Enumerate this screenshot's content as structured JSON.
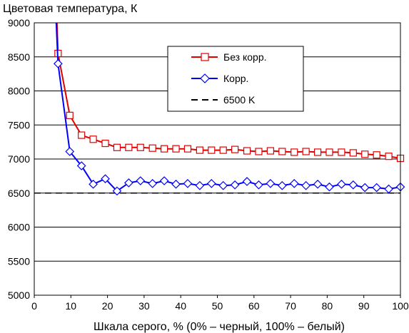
{
  "chart_data": {
    "type": "line",
    "title": "Цветовая температура, К",
    "xlabel": "Шкала серого, % (0% – черный, 100% – белый)",
    "ylabel": "",
    "xlim": [
      0,
      100
    ],
    "ylim": [
      5000,
      9000
    ],
    "x_ticks": [
      0,
      10,
      20,
      30,
      40,
      50,
      60,
      70,
      80,
      90,
      100
    ],
    "y_ticks": [
      5000,
      5500,
      6000,
      6500,
      7000,
      7500,
      8000,
      8500,
      9000
    ],
    "grid": "horizontal",
    "legend_position": "top-right",
    "reference_line": {
      "name": "6500 K",
      "value": 6500,
      "style": "dashed",
      "color": "#000000"
    },
    "series": [
      {
        "name": "Без корр.",
        "color": "#e00000",
        "marker": "square",
        "x": [
          6.2,
          6.5,
          9.7,
          12.9,
          16.1,
          19.4,
          22.6,
          25.8,
          29.0,
          32.3,
          35.5,
          38.7,
          41.9,
          45.2,
          48.4,
          51.6,
          54.8,
          58.1,
          61.3,
          64.5,
          67.7,
          71.0,
          74.2,
          77.4,
          80.6,
          83.9,
          87.1,
          90.3,
          93.5,
          96.8,
          100
        ],
        "y": [
          9000,
          8550,
          7640,
          7350,
          7290,
          7230,
          7170,
          7170,
          7170,
          7160,
          7150,
          7150,
          7150,
          7130,
          7130,
          7130,
          7140,
          7120,
          7110,
          7120,
          7110,
          7100,
          7110,
          7100,
          7100,
          7100,
          7090,
          7070,
          7060,
          7040,
          7010
        ]
      },
      {
        "name": "Корр.",
        "color": "#0000ff",
        "marker": "diamond",
        "x": [
          6.0,
          6.5,
          9.7,
          12.9,
          16.1,
          19.4,
          22.6,
          25.8,
          29.0,
          32.3,
          35.5,
          38.7,
          41.9,
          45.2,
          48.4,
          51.6,
          54.8,
          58.1,
          61.3,
          64.5,
          67.7,
          71.0,
          74.2,
          77.4,
          80.6,
          83.9,
          87.1,
          90.3,
          93.5,
          96.8,
          100
        ],
        "y": [
          9000,
          8400,
          7110,
          6900,
          6630,
          6710,
          6530,
          6650,
          6680,
          6640,
          6680,
          6630,
          6640,
          6610,
          6640,
          6610,
          6620,
          6670,
          6620,
          6640,
          6610,
          6640,
          6610,
          6630,
          6590,
          6630,
          6620,
          6580,
          6580,
          6560,
          6590
        ]
      }
    ]
  }
}
